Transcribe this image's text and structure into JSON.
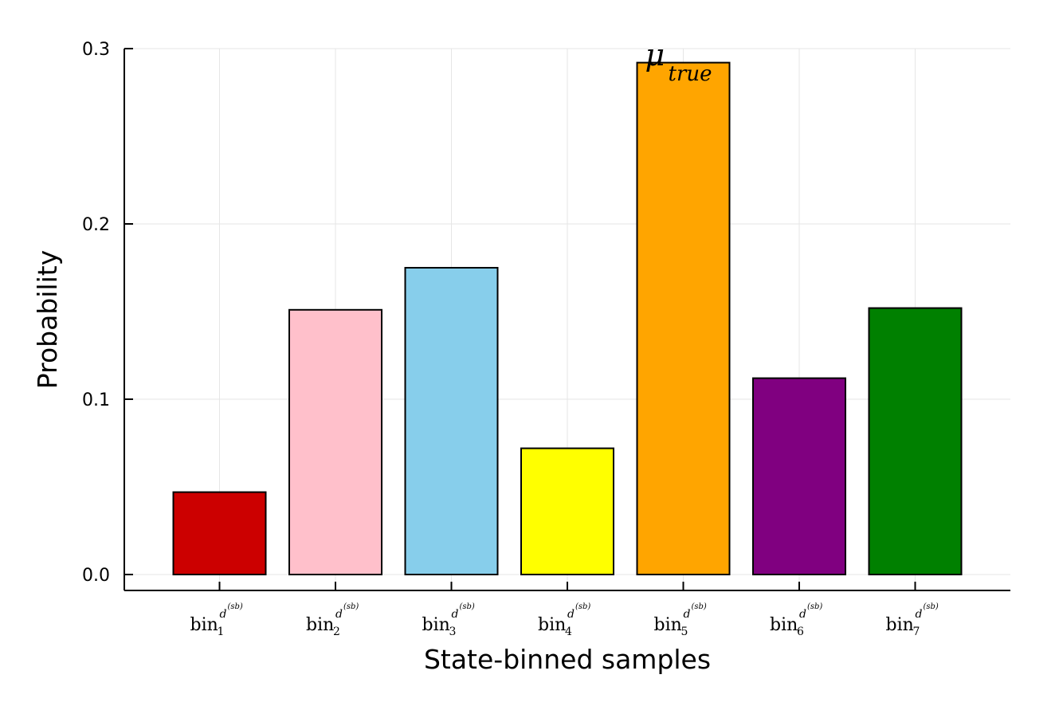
{
  "chart_data": {
    "type": "bar",
    "title": "",
    "xlabel": "State-binned samples",
    "ylabel": "Probability",
    "ylim": [
      -0.0085,
      0.3
    ],
    "yticks": [
      0.0,
      0.1,
      0.2,
      0.3
    ],
    "ytick_labels": [
      "0.0",
      "0.1",
      "0.2",
      "0.3"
    ],
    "grid": true,
    "legend": "none",
    "categories": [
      {
        "base": "bin",
        "sub": "1",
        "sup": "d",
        "supsup": "(sb)"
      },
      {
        "base": "bin",
        "sub": "2",
        "sup": "d",
        "supsup": "(sb)"
      },
      {
        "base": "bin",
        "sub": "3",
        "sup": "d",
        "supsup": "(sb)"
      },
      {
        "base": "bin",
        "sub": "4",
        "sup": "d",
        "supsup": "(sb)"
      },
      {
        "base": "bin",
        "sub": "5",
        "sup": "d",
        "supsup": "(sb)"
      },
      {
        "base": "bin",
        "sub": "6",
        "sup": "d",
        "supsup": "(sb)"
      },
      {
        "base": "bin",
        "sub": "7",
        "sup": "d",
        "supsup": "(sb)"
      }
    ],
    "values": [
      0.047,
      0.151,
      0.175,
      0.072,
      0.292,
      0.112,
      0.152
    ],
    "colors": [
      "#cc0000",
      "#ffc0cb",
      "#87ceeb",
      "#ffff00",
      "#ffa500",
      "#800080",
      "#008000"
    ],
    "annotation": {
      "symbol": "μ",
      "subscript": "true",
      "category_index": 4
    }
  }
}
